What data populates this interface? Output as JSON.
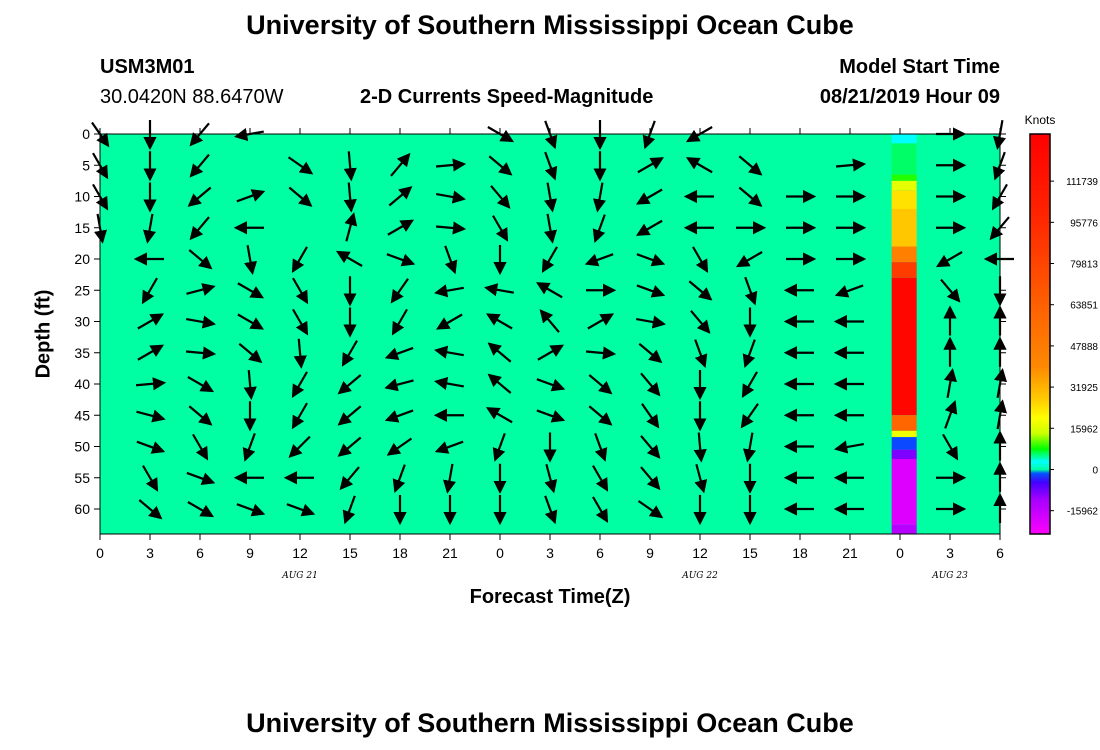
{
  "page_title": "University of Southern Mississippi Ocean Cube",
  "footer_title": "University of Southern Mississippi Ocean Cube",
  "station": {
    "id": "USM3M01",
    "coords": "30.0420N 88.6470W"
  },
  "subtitle": "2-D Currents Speed-Magnitude",
  "model_start": {
    "label": "Model Start Time",
    "value": "08/21/2019 Hour 09"
  },
  "colors": {
    "background_field": "#00FFA2",
    "arrow": "#000000"
  },
  "chart_data": {
    "type": "heatmap",
    "title": "2-D Currents Speed-Magnitude",
    "xlabel": "Forecast Time(Z)",
    "ylabel": "Depth (ft)",
    "y_reversed": true,
    "ylim": [
      0,
      64
    ],
    "xlim": [
      0,
      54
    ],
    "y_ticks": [
      "0",
      "5",
      "10",
      "15",
      "20",
      "25",
      "30",
      "35",
      "40",
      "45",
      "50",
      "55",
      "60"
    ],
    "y_tick_values": [
      0,
      5,
      10,
      15,
      20,
      25,
      30,
      35,
      40,
      45,
      50,
      55,
      60
    ],
    "x_ticks": [
      "0",
      "3",
      "6",
      "9",
      "12",
      "15",
      "18",
      "21",
      "0",
      "3",
      "6",
      "9",
      "12",
      "15",
      "18",
      "21",
      "0",
      "3",
      "6"
    ],
    "x_tick_values": [
      0,
      3,
      6,
      9,
      12,
      15,
      18,
      21,
      24,
      27,
      30,
      33,
      36,
      39,
      42,
      45,
      48,
      51,
      54
    ],
    "date_labels": [
      {
        "label": "AUG 21",
        "x": 12
      },
      {
        "label": "AUG 22",
        "x": 36
      },
      {
        "label": "AUG 23",
        "x": 51
      }
    ],
    "colorbar": {
      "title": "Knots",
      "ticks": [
        "111739",
        "95776",
        "79813",
        "63851",
        "47888",
        "31925",
        "15962",
        "0",
        "-15962"
      ],
      "tick_values": [
        111739,
        95776,
        79813,
        63851,
        47888,
        31925,
        15962,
        0,
        -15962
      ],
      "range": [
        -25000,
        130000
      ],
      "stops": [
        {
          "v": -25000,
          "c": "#FF00FF"
        },
        {
          "v": -12000,
          "c": "#AA00FF"
        },
        {
          "v": -5000,
          "c": "#4400FF"
        },
        {
          "v": -1500,
          "c": "#0055FF"
        },
        {
          "v": 0,
          "c": "#00FFA2"
        },
        {
          "v": 3000,
          "c": "#00FFFF"
        },
        {
          "v": 8000,
          "c": "#00FF00"
        },
        {
          "v": 14000,
          "c": "#CCFF00"
        },
        {
          "v": 20000,
          "c": "#FFFF00"
        },
        {
          "v": 27000,
          "c": "#FFCC00"
        },
        {
          "v": 40000,
          "c": "#FF8800"
        },
        {
          "v": 70000,
          "c": "#FF5500"
        },
        {
          "v": 100000,
          "c": "#FF2200"
        },
        {
          "v": 130000,
          "c": "#FF0000"
        }
      ]
    },
    "column_strip": {
      "x_start": 47.5,
      "x_end": 49,
      "segments": [
        {
          "depth": [
            0,
            1.5
          ],
          "value": 3000
        },
        {
          "depth": [
            1.5,
            6.5
          ],
          "value": 6000
        },
        {
          "depth": [
            6.5,
            7.5
          ],
          "value": 9000
        },
        {
          "depth": [
            7.5,
            9
          ],
          "value": 17000
        },
        {
          "depth": [
            9,
            12
          ],
          "value": 24000
        },
        {
          "depth": [
            12,
            18
          ],
          "value": 28000
        },
        {
          "depth": [
            18,
            20.5
          ],
          "value": 45000
        },
        {
          "depth": [
            20.5,
            23
          ],
          "value": 85000
        },
        {
          "depth": [
            23,
            45
          ],
          "value": 125000
        },
        {
          "depth": [
            45,
            47.5
          ],
          "value": 60000
        },
        {
          "depth": [
            47.5,
            48.5
          ],
          "value": 18000
        },
        {
          "depth": [
            48.5,
            50.5
          ],
          "value": -2000
        },
        {
          "depth": [
            50.5,
            52
          ],
          "value": -9000
        },
        {
          "depth": [
            52,
            62.5
          ],
          "value": -20000
        },
        {
          "depth": [
            62.5,
            64
          ],
          "value": -14000
        }
      ]
    },
    "vectors_note": "direction in degrees (0 = up/north, 90 = right/east)",
    "vectors": [
      {
        "t": 0,
        "d": 0,
        "dir": 145
      },
      {
        "t": 3,
        "d": 0,
        "dir": 180
      },
      {
        "t": 6,
        "d": 0,
        "dir": 220
      },
      {
        "t": 9,
        "d": 0,
        "dir": 260
      },
      {
        "t": 24,
        "d": 0,
        "dir": 120
      },
      {
        "t": 27,
        "d": 0,
        "dir": 160
      },
      {
        "t": 30,
        "d": 0,
        "dir": 180
      },
      {
        "t": 33,
        "d": 0,
        "dir": 200
      },
      {
        "t": 36,
        "d": 0,
        "dir": 240
      },
      {
        "t": 51,
        "d": 0,
        "dir": 90
      },
      {
        "t": 54,
        "d": 0,
        "dir": 190
      },
      {
        "t": 0,
        "d": 5,
        "dir": 150
      },
      {
        "t": 3,
        "d": 5,
        "dir": 180
      },
      {
        "t": 6,
        "d": 5,
        "dir": 220
      },
      {
        "t": 12,
        "d": 5,
        "dir": 125
      },
      {
        "t": 15,
        "d": 5,
        "dir": 175
      },
      {
        "t": 18,
        "d": 5,
        "dir": 40
      },
      {
        "t": 21,
        "d": 5,
        "dir": 85
      },
      {
        "t": 24,
        "d": 5,
        "dir": 130
      },
      {
        "t": 27,
        "d": 5,
        "dir": 160
      },
      {
        "t": 30,
        "d": 5,
        "dir": 180
      },
      {
        "t": 33,
        "d": 5,
        "dir": 60
      },
      {
        "t": 36,
        "d": 5,
        "dir": 300
      },
      {
        "t": 39,
        "d": 5,
        "dir": 130
      },
      {
        "t": 45,
        "d": 5,
        "dir": 85
      },
      {
        "t": 51,
        "d": 5,
        "dir": 90
      },
      {
        "t": 54,
        "d": 5,
        "dir": 200
      },
      {
        "t": 0,
        "d": 10,
        "dir": 150
      },
      {
        "t": 3,
        "d": 10,
        "dir": 180
      },
      {
        "t": 6,
        "d": 10,
        "dir": 230
      },
      {
        "t": 9,
        "d": 10,
        "dir": 70
      },
      {
        "t": 12,
        "d": 10,
        "dir": 130
      },
      {
        "t": 15,
        "d": 10,
        "dir": 175
      },
      {
        "t": 18,
        "d": 10,
        "dir": 50
      },
      {
        "t": 21,
        "d": 10,
        "dir": 100
      },
      {
        "t": 24,
        "d": 10,
        "dir": 140
      },
      {
        "t": 27,
        "d": 10,
        "dir": 170
      },
      {
        "t": 30,
        "d": 10,
        "dir": 190
      },
      {
        "t": 33,
        "d": 10,
        "dir": 240
      },
      {
        "t": 36,
        "d": 10,
        "dir": 270
      },
      {
        "t": 39,
        "d": 10,
        "dir": 130
      },
      {
        "t": 42,
        "d": 10,
        "dir": 90
      },
      {
        "t": 45,
        "d": 10,
        "dir": 90
      },
      {
        "t": 51,
        "d": 10,
        "dir": 90
      },
      {
        "t": 54,
        "d": 10,
        "dir": 210
      },
      {
        "t": 0,
        "d": 15,
        "dir": 170
      },
      {
        "t": 3,
        "d": 15,
        "dir": 190
      },
      {
        "t": 6,
        "d": 15,
        "dir": 220
      },
      {
        "t": 9,
        "d": 15,
        "dir": 270
      },
      {
        "t": 15,
        "d": 15,
        "dir": 15
      },
      {
        "t": 18,
        "d": 15,
        "dir": 60
      },
      {
        "t": 21,
        "d": 15,
        "dir": 95
      },
      {
        "t": 24,
        "d": 15,
        "dir": 150
      },
      {
        "t": 27,
        "d": 15,
        "dir": 170
      },
      {
        "t": 30,
        "d": 15,
        "dir": 200
      },
      {
        "t": 33,
        "d": 15,
        "dir": 240
      },
      {
        "t": 36,
        "d": 15,
        "dir": 270
      },
      {
        "t": 39,
        "d": 15,
        "dir": 90
      },
      {
        "t": 42,
        "d": 15,
        "dir": 90
      },
      {
        "t": 45,
        "d": 15,
        "dir": 90
      },
      {
        "t": 51,
        "d": 15,
        "dir": 90
      },
      {
        "t": 54,
        "d": 15,
        "dir": 220
      },
      {
        "t": 3,
        "d": 20,
        "dir": 270
      },
      {
        "t": 6,
        "d": 20,
        "dir": 130
      },
      {
        "t": 9,
        "d": 20,
        "dir": 170
      },
      {
        "t": 12,
        "d": 20,
        "dir": 210
      },
      {
        "t": 15,
        "d": 20,
        "dir": 300
      },
      {
        "t": 18,
        "d": 20,
        "dir": 110
      },
      {
        "t": 21,
        "d": 20,
        "dir": 160
      },
      {
        "t": 24,
        "d": 20,
        "dir": 180
      },
      {
        "t": 27,
        "d": 20,
        "dir": 210
      },
      {
        "t": 30,
        "d": 20,
        "dir": 250
      },
      {
        "t": 33,
        "d": 20,
        "dir": 110
      },
      {
        "t": 36,
        "d": 20,
        "dir": 150
      },
      {
        "t": 39,
        "d": 20,
        "dir": 240
      },
      {
        "t": 42,
        "d": 20,
        "dir": 90
      },
      {
        "t": 45,
        "d": 20,
        "dir": 90
      },
      {
        "t": 51,
        "d": 20,
        "dir": 240
      },
      {
        "t": 54,
        "d": 20,
        "dir": 270
      },
      {
        "t": 3,
        "d": 25,
        "dir": 210
      },
      {
        "t": 6,
        "d": 25,
        "dir": 75
      },
      {
        "t": 9,
        "d": 25,
        "dir": 120
      },
      {
        "t": 12,
        "d": 25,
        "dir": 150
      },
      {
        "t": 15,
        "d": 25,
        "dir": 180
      },
      {
        "t": 18,
        "d": 25,
        "dir": 215
      },
      {
        "t": 21,
        "d": 25,
        "dir": 260
      },
      {
        "t": 24,
        "d": 25,
        "dir": 280
      },
      {
        "t": 27,
        "d": 25,
        "dir": 300
      },
      {
        "t": 30,
        "d": 25,
        "dir": 90
      },
      {
        "t": 33,
        "d": 25,
        "dir": 110
      },
      {
        "t": 36,
        "d": 25,
        "dir": 130
      },
      {
        "t": 39,
        "d": 25,
        "dir": 160
      },
      {
        "t": 42,
        "d": 25,
        "dir": 270
      },
      {
        "t": 45,
        "d": 25,
        "dir": 250
      },
      {
        "t": 51,
        "d": 25,
        "dir": 140
      },
      {
        "t": 54,
        "d": 25,
        "dir": 180
      },
      {
        "t": 3,
        "d": 30,
        "dir": 60
      },
      {
        "t": 6,
        "d": 30,
        "dir": 100
      },
      {
        "t": 9,
        "d": 30,
        "dir": 120
      },
      {
        "t": 12,
        "d": 30,
        "dir": 150
      },
      {
        "t": 15,
        "d": 30,
        "dir": 180
      },
      {
        "t": 18,
        "d": 30,
        "dir": 210
      },
      {
        "t": 21,
        "d": 30,
        "dir": 240
      },
      {
        "t": 24,
        "d": 30,
        "dir": 300
      },
      {
        "t": 27,
        "d": 30,
        "dir": 320
      },
      {
        "t": 30,
        "d": 30,
        "dir": 60
      },
      {
        "t": 33,
        "d": 30,
        "dir": 100
      },
      {
        "t": 36,
        "d": 30,
        "dir": 140
      },
      {
        "t": 39,
        "d": 30,
        "dir": 180
      },
      {
        "t": 42,
        "d": 30,
        "dir": 270
      },
      {
        "t": 45,
        "d": 30,
        "dir": 270
      },
      {
        "t": 51,
        "d": 30,
        "dir": 0
      },
      {
        "t": 54,
        "d": 30,
        "dir": 0
      },
      {
        "t": 3,
        "d": 35,
        "dir": 60
      },
      {
        "t": 6,
        "d": 35,
        "dir": 95
      },
      {
        "t": 9,
        "d": 35,
        "dir": 130
      },
      {
        "t": 12,
        "d": 35,
        "dir": 175
      },
      {
        "t": 15,
        "d": 35,
        "dir": 210
      },
      {
        "t": 18,
        "d": 35,
        "dir": 250
      },
      {
        "t": 21,
        "d": 35,
        "dir": 280
      },
      {
        "t": 24,
        "d": 35,
        "dir": 310
      },
      {
        "t": 27,
        "d": 35,
        "dir": 60
      },
      {
        "t": 30,
        "d": 35,
        "dir": 95
      },
      {
        "t": 33,
        "d": 35,
        "dir": 130
      },
      {
        "t": 36,
        "d": 35,
        "dir": 160
      },
      {
        "t": 39,
        "d": 35,
        "dir": 200
      },
      {
        "t": 42,
        "d": 35,
        "dir": 270
      },
      {
        "t": 45,
        "d": 35,
        "dir": 270
      },
      {
        "t": 51,
        "d": 35,
        "dir": 0
      },
      {
        "t": 54,
        "d": 35,
        "dir": 0
      },
      {
        "t": 3,
        "d": 40,
        "dir": 85
      },
      {
        "t": 6,
        "d": 40,
        "dir": 120
      },
      {
        "t": 9,
        "d": 40,
        "dir": 175
      },
      {
        "t": 12,
        "d": 40,
        "dir": 210
      },
      {
        "t": 15,
        "d": 40,
        "dir": 230
      },
      {
        "t": 18,
        "d": 40,
        "dir": 255
      },
      {
        "t": 21,
        "d": 40,
        "dir": 280
      },
      {
        "t": 24,
        "d": 40,
        "dir": 310
      },
      {
        "t": 27,
        "d": 40,
        "dir": 110
      },
      {
        "t": 30,
        "d": 40,
        "dir": 130
      },
      {
        "t": 33,
        "d": 40,
        "dir": 140
      },
      {
        "t": 36,
        "d": 40,
        "dir": 180
      },
      {
        "t": 39,
        "d": 40,
        "dir": 210
      },
      {
        "t": 42,
        "d": 40,
        "dir": 270
      },
      {
        "t": 45,
        "d": 40,
        "dir": 270
      },
      {
        "t": 51,
        "d": 40,
        "dir": 10
      },
      {
        "t": 54,
        "d": 40,
        "dir": 10
      },
      {
        "t": 3,
        "d": 45,
        "dir": 105
      },
      {
        "t": 6,
        "d": 45,
        "dir": 130
      },
      {
        "t": 9,
        "d": 45,
        "dir": 180
      },
      {
        "t": 12,
        "d": 45,
        "dir": 210
      },
      {
        "t": 15,
        "d": 45,
        "dir": 230
      },
      {
        "t": 18,
        "d": 45,
        "dir": 250
      },
      {
        "t": 21,
        "d": 45,
        "dir": 270
      },
      {
        "t": 24,
        "d": 45,
        "dir": 300
      },
      {
        "t": 27,
        "d": 45,
        "dir": 110
      },
      {
        "t": 30,
        "d": 45,
        "dir": 130
      },
      {
        "t": 33,
        "d": 45,
        "dir": 145
      },
      {
        "t": 36,
        "d": 45,
        "dir": 180
      },
      {
        "t": 39,
        "d": 45,
        "dir": 215
      },
      {
        "t": 42,
        "d": 45,
        "dir": 270
      },
      {
        "t": 45,
        "d": 45,
        "dir": 270
      },
      {
        "t": 51,
        "d": 45,
        "dir": 20
      },
      {
        "t": 54,
        "d": 45,
        "dir": 10
      },
      {
        "t": 3,
        "d": 50,
        "dir": 110
      },
      {
        "t": 6,
        "d": 50,
        "dir": 150
      },
      {
        "t": 9,
        "d": 50,
        "dir": 200
      },
      {
        "t": 12,
        "d": 50,
        "dir": 225
      },
      {
        "t": 15,
        "d": 50,
        "dir": 230
      },
      {
        "t": 18,
        "d": 50,
        "dir": 235
      },
      {
        "t": 21,
        "d": 50,
        "dir": 250
      },
      {
        "t": 24,
        "d": 50,
        "dir": 200
      },
      {
        "t": 27,
        "d": 50,
        "dir": 180
      },
      {
        "t": 30,
        "d": 50,
        "dir": 160
      },
      {
        "t": 33,
        "d": 50,
        "dir": 140
      },
      {
        "t": 36,
        "d": 50,
        "dir": 175
      },
      {
        "t": 39,
        "d": 50,
        "dir": 190
      },
      {
        "t": 42,
        "d": 50,
        "dir": 270
      },
      {
        "t": 45,
        "d": 50,
        "dir": 260
      },
      {
        "t": 51,
        "d": 50,
        "dir": 150
      },
      {
        "t": 54,
        "d": 50,
        "dir": 0
      },
      {
        "t": 3,
        "d": 55,
        "dir": 150
      },
      {
        "t": 6,
        "d": 55,
        "dir": 110
      },
      {
        "t": 9,
        "d": 55,
        "dir": 270
      },
      {
        "t": 12,
        "d": 55,
        "dir": 270
      },
      {
        "t": 15,
        "d": 55,
        "dir": 220
      },
      {
        "t": 18,
        "d": 55,
        "dir": 200
      },
      {
        "t": 21,
        "d": 55,
        "dir": 190
      },
      {
        "t": 24,
        "d": 55,
        "dir": 180
      },
      {
        "t": 27,
        "d": 55,
        "dir": 165
      },
      {
        "t": 30,
        "d": 55,
        "dir": 150
      },
      {
        "t": 33,
        "d": 55,
        "dir": 140
      },
      {
        "t": 36,
        "d": 55,
        "dir": 165
      },
      {
        "t": 39,
        "d": 55,
        "dir": 180
      },
      {
        "t": 42,
        "d": 55,
        "dir": 270
      },
      {
        "t": 45,
        "d": 55,
        "dir": 270
      },
      {
        "t": 51,
        "d": 55,
        "dir": 90
      },
      {
        "t": 54,
        "d": 55,
        "dir": 0
      },
      {
        "t": 3,
        "d": 60,
        "dir": 130
      },
      {
        "t": 6,
        "d": 60,
        "dir": 120
      },
      {
        "t": 9,
        "d": 60,
        "dir": 110
      },
      {
        "t": 12,
        "d": 60,
        "dir": 110
      },
      {
        "t": 15,
        "d": 60,
        "dir": 200
      },
      {
        "t": 18,
        "d": 60,
        "dir": 180
      },
      {
        "t": 21,
        "d": 60,
        "dir": 180
      },
      {
        "t": 24,
        "d": 60,
        "dir": 180
      },
      {
        "t": 27,
        "d": 60,
        "dir": 160
      },
      {
        "t": 30,
        "d": 60,
        "dir": 150
      },
      {
        "t": 33,
        "d": 60,
        "dir": 125
      },
      {
        "t": 36,
        "d": 60,
        "dir": 180
      },
      {
        "t": 39,
        "d": 60,
        "dir": 180
      },
      {
        "t": 42,
        "d": 60,
        "dir": 270
      },
      {
        "t": 45,
        "d": 60,
        "dir": 270
      },
      {
        "t": 51,
        "d": 60,
        "dir": 90
      },
      {
        "t": 54,
        "d": 60,
        "dir": 0
      }
    ]
  }
}
